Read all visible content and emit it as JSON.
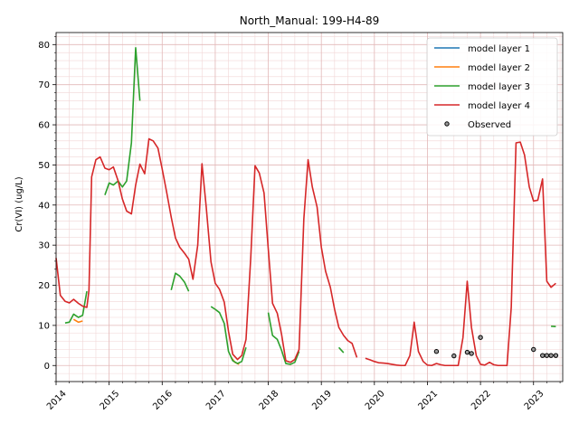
{
  "chart_data": {
    "type": "line",
    "title": "North_Manual: 199-H4-89",
    "xlabel": "",
    "ylabel": "Cr(VI) (ug/L)",
    "xlim": [
      2014.0,
      2023.55
    ],
    "ylim": [
      -4,
      83
    ],
    "xticks": [
      2014,
      2015,
      2016,
      2017,
      2018,
      2019,
      2020,
      2021,
      2022,
      2023
    ],
    "xtick_labels": [
      "2014",
      "2015",
      "2016",
      "2017",
      "2018",
      "2019",
      "2020",
      "2021",
      "2022",
      "2023"
    ],
    "yticks": [
      0,
      10,
      20,
      30,
      40,
      50,
      60,
      70,
      80
    ],
    "ytick_labels": [
      "0",
      "10",
      "20",
      "30",
      "40",
      "50",
      "60",
      "70",
      "80"
    ],
    "grid": true,
    "legend": "top-right",
    "series": [
      {
        "name": "model layer 1",
        "color": "#1f77b4",
        "segments": []
      },
      {
        "name": "model layer 2",
        "color": "#ff7f0e",
        "segments": [
          [
            [
              2014.33,
              11.5
            ],
            [
              2014.42,
              10.8
            ],
            [
              2014.5,
              11.1
            ]
          ],
          [
            [
              2017.3,
              2.0
            ],
            [
              2017.37,
              0.8
            ],
            [
              2017.45,
              0.3
            ]
          ]
        ]
      },
      {
        "name": "model layer 3",
        "color": "#2ca02c",
        "segments": [
          [
            [
              2014.17,
              10.6
            ],
            [
              2014.25,
              10.8
            ],
            [
              2014.33,
              12.8
            ],
            [
              2014.42,
              12.0
            ],
            [
              2014.5,
              12.5
            ],
            [
              2014.58,
              18.5
            ]
          ],
          [
            [
              2014.92,
              42.5
            ],
            [
              2015.0,
              45.5
            ],
            [
              2015.08,
              45.0
            ],
            [
              2015.17,
              46.0
            ],
            [
              2015.25,
              44.5
            ],
            [
              2015.33,
              46.0
            ],
            [
              2015.42,
              55.5
            ],
            [
              2015.5,
              79.2
            ],
            [
              2015.58,
              66.0
            ]
          ],
          [
            [
              2016.17,
              18.8
            ],
            [
              2016.25,
              23.0
            ],
            [
              2016.33,
              22.3
            ],
            [
              2016.42,
              20.8
            ],
            [
              2016.5,
              18.5
            ]
          ],
          [
            [
              2016.92,
              14.7
            ],
            [
              2017.0,
              14.0
            ],
            [
              2017.08,
              13.2
            ],
            [
              2017.17,
              10.5
            ],
            [
              2017.25,
              3.5
            ],
            [
              2017.33,
              1.2
            ],
            [
              2017.42,
              0.5
            ],
            [
              2017.5,
              1.0
            ],
            [
              2017.58,
              4.5
            ]
          ],
          [
            [
              2018.0,
              13.2
            ],
            [
              2018.08,
              7.5
            ],
            [
              2018.17,
              6.5
            ],
            [
              2018.25,
              3.8
            ],
            [
              2018.33,
              0.5
            ],
            [
              2018.42,
              0.3
            ],
            [
              2018.5,
              0.8
            ],
            [
              2018.58,
              3.5
            ]
          ],
          [
            [
              2019.33,
              4.5
            ],
            [
              2019.42,
              3.2
            ]
          ],
          [
            [
              2023.33,
              9.8
            ],
            [
              2023.42,
              9.7
            ]
          ]
        ]
      },
      {
        "name": "model layer 4",
        "color": "#d62728",
        "segments": [
          [
            [
              2014.0,
              26.8
            ],
            [
              2014.08,
              17.5
            ],
            [
              2014.17,
              16.0
            ],
            [
              2014.25,
              15.6
            ],
            [
              2014.33,
              16.5
            ],
            [
              2014.42,
              15.5
            ],
            [
              2014.5,
              14.8
            ],
            [
              2014.58,
              14.5
            ],
            [
              2014.62,
              18.8
            ],
            [
              2014.67,
              47.0
            ],
            [
              2014.75,
              51.3
            ],
            [
              2014.83,
              52.0
            ],
            [
              2014.92,
              49.2
            ],
            [
              2015.0,
              48.8
            ],
            [
              2015.08,
              49.5
            ],
            [
              2015.17,
              46.0
            ],
            [
              2015.25,
              41.5
            ],
            [
              2015.33,
              38.5
            ],
            [
              2015.42,
              37.8
            ],
            [
              2015.5,
              45.0
            ],
            [
              2015.58,
              50.2
            ],
            [
              2015.67,
              47.8
            ],
            [
              2015.75,
              56.5
            ],
            [
              2015.83,
              56.0
            ],
            [
              2015.92,
              54.2
            ],
            [
              2016.0,
              49.0
            ],
            [
              2016.08,
              43.5
            ],
            [
              2016.17,
              37.0
            ],
            [
              2016.25,
              31.8
            ],
            [
              2016.33,
              29.5
            ],
            [
              2016.42,
              28.0
            ],
            [
              2016.5,
              26.5
            ],
            [
              2016.58,
              21.5
            ],
            [
              2016.67,
              30.0
            ],
            [
              2016.75,
              50.3
            ],
            [
              2016.83,
              39.5
            ],
            [
              2016.92,
              25.8
            ],
            [
              2017.0,
              20.5
            ],
            [
              2017.08,
              19.0
            ],
            [
              2017.17,
              15.8
            ],
            [
              2017.25,
              8.5
            ],
            [
              2017.33,
              2.8
            ],
            [
              2017.42,
              1.5
            ],
            [
              2017.5,
              2.5
            ],
            [
              2017.58,
              6.5
            ],
            [
              2017.67,
              27.0
            ],
            [
              2017.75,
              49.8
            ],
            [
              2017.83,
              48.0
            ],
            [
              2017.92,
              43.0
            ],
            [
              2018.0,
              29.0
            ],
            [
              2018.08,
              15.5
            ],
            [
              2018.17,
              13.0
            ],
            [
              2018.25,
              7.8
            ],
            [
              2018.33,
              1.2
            ],
            [
              2018.42,
              0.8
            ],
            [
              2018.5,
              1.5
            ],
            [
              2018.58,
              4.0
            ],
            [
              2018.67,
              36.5
            ],
            [
              2018.75,
              51.3
            ],
            [
              2018.83,
              44.5
            ],
            [
              2018.92,
              39.5
            ],
            [
              2019.0,
              29.5
            ],
            [
              2019.08,
              23.5
            ],
            [
              2019.17,
              19.5
            ],
            [
              2019.25,
              14.0
            ],
            [
              2019.33,
              9.5
            ],
            [
              2019.42,
              7.5
            ],
            [
              2019.5,
              6.2
            ],
            [
              2019.58,
              5.5
            ],
            [
              2019.67,
              2.0
            ]
          ],
          [
            [
              2019.83,
              1.8
            ],
            [
              2019.92,
              1.4
            ],
            [
              2020.0,
              1.0
            ],
            [
              2020.08,
              0.7
            ],
            [
              2020.17,
              0.6
            ],
            [
              2020.25,
              0.5
            ],
            [
              2020.33,
              0.3
            ],
            [
              2020.42,
              0.1
            ],
            [
              2020.5,
              0.0
            ],
            [
              2020.58,
              0.0
            ],
            [
              2020.67,
              2.5
            ],
            [
              2020.75,
              10.8
            ],
            [
              2020.83,
              3.5
            ],
            [
              2020.92,
              1.0
            ],
            [
              2021.0,
              0.1
            ],
            [
              2021.08,
              0.0
            ],
            [
              2021.17,
              0.5
            ],
            [
              2021.25,
              0.2
            ],
            [
              2021.33,
              0.0
            ],
            [
              2021.42,
              0.0
            ],
            [
              2021.5,
              0.0
            ],
            [
              2021.58,
              0.0
            ],
            [
              2021.67,
              7.0
            ],
            [
              2021.75,
              21.0
            ],
            [
              2021.83,
              9.5
            ],
            [
              2021.92,
              2.5
            ],
            [
              2022.0,
              0.3
            ],
            [
              2022.08,
              0.1
            ],
            [
              2022.17,
              0.8
            ],
            [
              2022.25,
              0.2
            ],
            [
              2022.33,
              0.0
            ],
            [
              2022.42,
              0.0
            ],
            [
              2022.5,
              0.0
            ],
            [
              2022.58,
              14.5
            ],
            [
              2022.67,
              55.5
            ],
            [
              2022.75,
              55.7
            ],
            [
              2022.83,
              52.5
            ],
            [
              2022.92,
              44.5
            ],
            [
              2023.0,
              41.0
            ],
            [
              2023.08,
              41.2
            ],
            [
              2023.17,
              46.5
            ],
            [
              2023.25,
              21.0
            ],
            [
              2023.33,
              19.5
            ],
            [
              2023.42,
              20.5
            ]
          ]
        ]
      }
    ],
    "observed": {
      "name": "Observed",
      "points": [
        [
          2021.17,
          3.5
        ],
        [
          2021.5,
          2.4
        ],
        [
          2021.75,
          3.3
        ],
        [
          2021.83,
          3.0
        ],
        [
          2022.0,
          7.0
        ],
        [
          2023.0,
          4.0
        ],
        [
          2023.17,
          2.5
        ],
        [
          2023.25,
          2.5
        ],
        [
          2023.33,
          2.5
        ],
        [
          2023.42,
          2.5
        ]
      ]
    }
  }
}
